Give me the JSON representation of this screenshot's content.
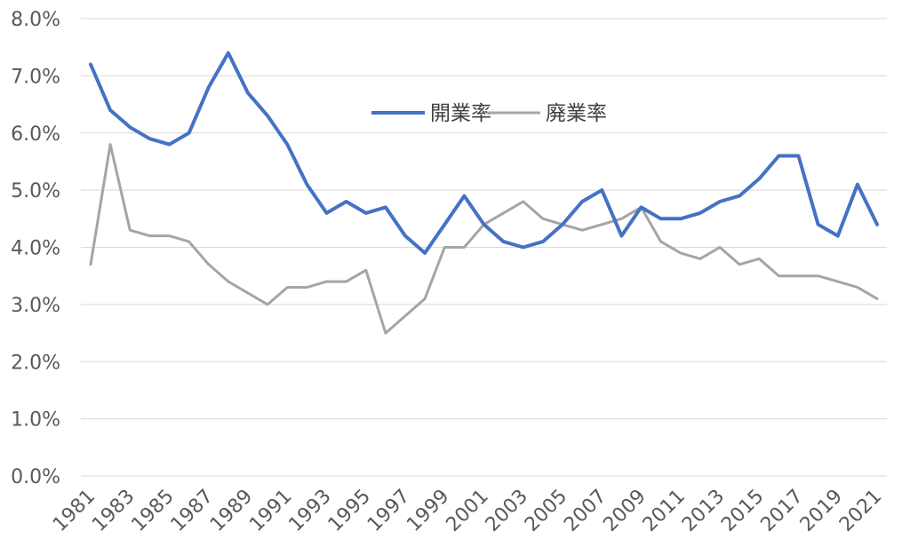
{
  "chart_data": {
    "type": "line",
    "title": "",
    "xlabel": "",
    "ylabel": "",
    "x": [
      1981,
      1982,
      1983,
      1984,
      1985,
      1986,
      1987,
      1988,
      1989,
      1990,
      1991,
      1992,
      1993,
      1994,
      1995,
      1996,
      1997,
      1998,
      1999,
      2000,
      2001,
      2002,
      2003,
      2004,
      2005,
      2006,
      2007,
      2008,
      2009,
      2010,
      2011,
      2012,
      2013,
      2014,
      2015,
      2016,
      2017,
      2018,
      2019,
      2020,
      2021
    ],
    "x_tick_labels": [
      "1981",
      "1983",
      "1985",
      "1987",
      "1989",
      "1991",
      "1993",
      "1995",
      "1997",
      "1999",
      "2001",
      "2003",
      "2005",
      "2007",
      "2009",
      "2011",
      "2013",
      "2015",
      "2017",
      "2019",
      "2021"
    ],
    "y_tick_values": [
      0,
      1,
      2,
      3,
      4,
      5,
      6,
      7,
      8
    ],
    "y_tick_labels": [
      "0.0%",
      "1.0%",
      "2.0%",
      "3.0%",
      "4.0%",
      "5.0%",
      "6.0%",
      "7.0%",
      "8.0%"
    ],
    "ylim": [
      0,
      8
    ],
    "grid": "horizontal",
    "legend_position": "top-center",
    "series": [
      {
        "name": "開業率",
        "color": "#4472c4",
        "values": [
          7.2,
          6.4,
          6.1,
          5.9,
          5.8,
          6.0,
          6.8,
          7.4,
          6.7,
          6.3,
          5.8,
          5.1,
          4.6,
          4.8,
          4.6,
          4.7,
          4.2,
          3.9,
          4.4,
          4.9,
          4.4,
          4.1,
          4.0,
          4.1,
          4.4,
          4.8,
          5.0,
          4.2,
          4.7,
          4.5,
          4.5,
          4.6,
          4.8,
          4.9,
          5.2,
          5.6,
          5.6,
          4.4,
          4.2,
          5.1,
          4.4
        ]
      },
      {
        "name": "廃業率",
        "color": "#a5a5a5",
        "values": [
          3.7,
          5.8,
          4.3,
          4.2,
          4.2,
          4.1,
          3.7,
          3.4,
          3.2,
          3.0,
          3.3,
          3.3,
          3.4,
          3.4,
          3.6,
          2.5,
          2.8,
          3.1,
          4.0,
          4.0,
          4.4,
          4.6,
          4.8,
          4.5,
          4.4,
          4.3,
          4.4,
          4.5,
          4.7,
          4.1,
          3.9,
          3.8,
          4.0,
          3.7,
          3.8,
          3.5,
          3.5,
          3.5,
          3.4,
          3.3,
          3.1
        ]
      }
    ]
  }
}
